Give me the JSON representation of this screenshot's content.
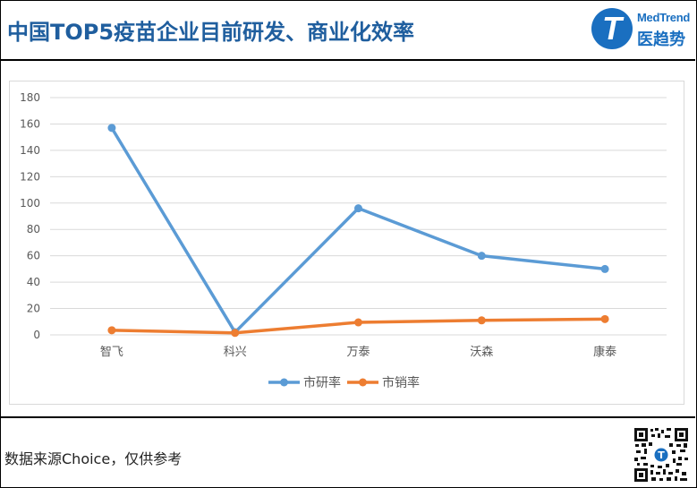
{
  "header": {
    "title": "中国TOP5疫苗企业目前研发、商业化效率",
    "logo": {
      "icon": "medtrend-t-logo-icon",
      "text_en": "MedTrend",
      "text_cn": "医趋势",
      "letter": "T",
      "color": "#1a6fc0"
    }
  },
  "footer": {
    "source": "数据来源Choice，仅供参考",
    "qr_icon": "qr-code-icon"
  },
  "colors": {
    "series1": "#5b9bd5",
    "series2": "#ed7d31",
    "title": "#1f5e9e",
    "grid": "#d9d9d9"
  },
  "chart_data": {
    "type": "line",
    "title": "中国TOP5疫苗企业目前研发、商业化效率",
    "xlabel": "",
    "ylabel": "",
    "categories": [
      "智飞",
      "科兴",
      "万泰",
      "沃森",
      "康泰"
    ],
    "series": [
      {
        "name": "市研率",
        "color": "#5b9bd5",
        "values": [
          157,
          2,
          96,
          60,
          50
        ]
      },
      {
        "name": "市销率",
        "color": "#ed7d31",
        "values": [
          3.5,
          1.5,
          9.5,
          11,
          12
        ]
      }
    ],
    "ylim": [
      0,
      180
    ],
    "yticks": [
      0,
      20,
      40,
      60,
      80,
      100,
      120,
      140,
      160,
      180
    ],
    "grid": true,
    "legend_position": "bottom",
    "markers": true
  }
}
